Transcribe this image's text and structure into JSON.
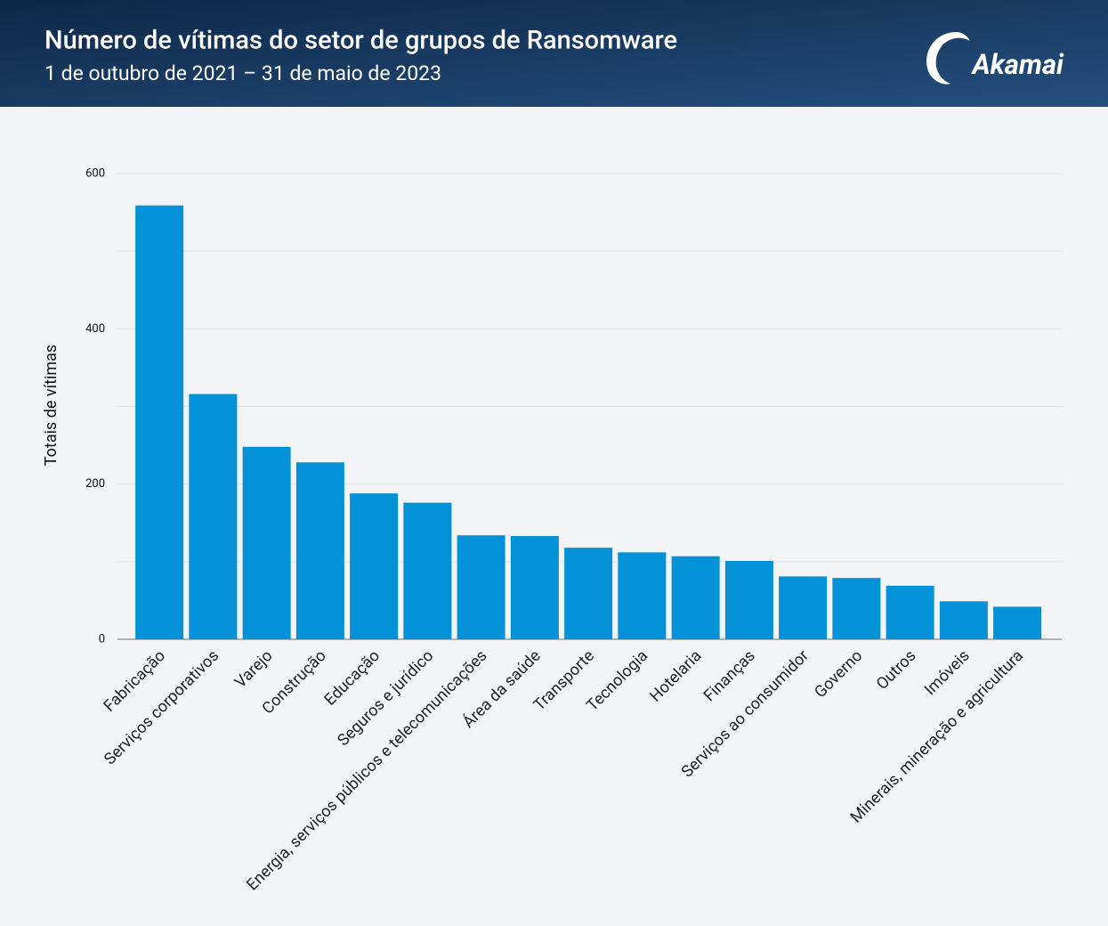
{
  "chart_data": {
    "type": "bar",
    "title": "Número de vítimas do setor de grupos de Ransomware",
    "subtitle": "1 de outubro de 2021 – 31 de maio de 2023",
    "logo": "Akamai",
    "y_label": "Totais de vítimas",
    "categories": [
      "Fabricação",
      "Serviços corporativos",
      "Varejo",
      "Construção",
      "Educação",
      "Seguros e jurídico",
      "Energia, serviços públicos e telecomunicações",
      "Área da saúde",
      "Transporte",
      "Tecnologia",
      "Hotelaria",
      "Finanças",
      "Serviços ao consumidor",
      "Governo",
      "Outros",
      "Imóveis",
      "Minerais, mineração e agricultura"
    ],
    "values": [
      559,
      316,
      248,
      228,
      188,
      176,
      134,
      133,
      118,
      112,
      107,
      101,
      81,
      79,
      69,
      49,
      42
    ],
    "color": "#0391d8",
    "ylim": [
      0,
      600
    ],
    "yticks": [
      0,
      200,
      400,
      600
    ],
    "minor_yticks": [
      100,
      300,
      500
    ],
    "grid": true
  }
}
